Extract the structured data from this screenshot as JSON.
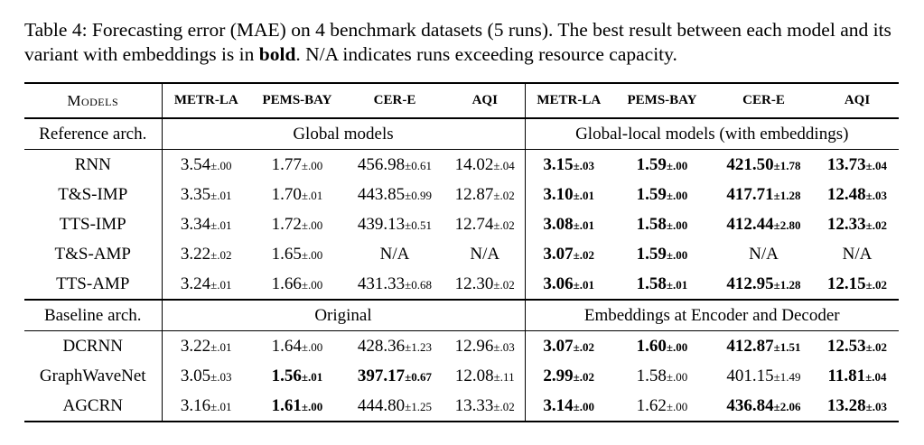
{
  "caption": {
    "part1": "Table 4: Forecasting error (MAE) on 4 benchmark datasets (5 runs). The best result between each model and its variant with embeddings is in ",
    "bold_word": "bold",
    "part2": ". N/A indicates runs exceeding resource capacity."
  },
  "header": {
    "models": "Models",
    "datasets": [
      "METR-LA",
      "PEMS-BAY",
      "CER-E",
      "AQI",
      "METR-LA",
      "PEMS-BAY",
      "CER-E",
      "AQI"
    ]
  },
  "sections": [
    {
      "label": "Reference arch.",
      "left_title": "Global models",
      "right_title": "Global-local models (with embeddings)",
      "rows": [
        {
          "model": "RNN",
          "cells": [
            {
              "v": "3.54",
              "s": "±.00",
              "b": false
            },
            {
              "v": "1.77",
              "s": "±.00",
              "b": false
            },
            {
              "v": "456.98",
              "s": "±0.61",
              "b": false
            },
            {
              "v": "14.02",
              "s": "±.04",
              "b": false
            },
            {
              "v": "3.15",
              "s": "±.03",
              "b": true
            },
            {
              "v": "1.59",
              "s": "±.00",
              "b": true
            },
            {
              "v": "421.50",
              "s": "±1.78",
              "b": true
            },
            {
              "v": "13.73",
              "s": "±.04",
              "b": true
            }
          ]
        },
        {
          "model": "T&S-IMP",
          "cells": [
            {
              "v": "3.35",
              "s": "±.01",
              "b": false
            },
            {
              "v": "1.70",
              "s": "±.01",
              "b": false
            },
            {
              "v": "443.85",
              "s": "±0.99",
              "b": false
            },
            {
              "v": "12.87",
              "s": "±.02",
              "b": false
            },
            {
              "v": "3.10",
              "s": "±.01",
              "b": true
            },
            {
              "v": "1.59",
              "s": "±.00",
              "b": true
            },
            {
              "v": "417.71",
              "s": "±1.28",
              "b": true
            },
            {
              "v": "12.48",
              "s": "±.03",
              "b": true
            }
          ]
        },
        {
          "model": "TTS-IMP",
          "cells": [
            {
              "v": "3.34",
              "s": "±.01",
              "b": false
            },
            {
              "v": "1.72",
              "s": "±.00",
              "b": false
            },
            {
              "v": "439.13",
              "s": "±0.51",
              "b": false
            },
            {
              "v": "12.74",
              "s": "±.02",
              "b": false
            },
            {
              "v": "3.08",
              "s": "±.01",
              "b": true
            },
            {
              "v": "1.58",
              "s": "±.00",
              "b": true
            },
            {
              "v": "412.44",
              "s": "±2.80",
              "b": true
            },
            {
              "v": "12.33",
              "s": "±.02",
              "b": true
            }
          ]
        },
        {
          "model": "T&S-AMP",
          "cells": [
            {
              "v": "3.22",
              "s": "±.02",
              "b": false
            },
            {
              "v": "1.65",
              "s": "±.00",
              "b": false
            },
            {
              "v": "N/A",
              "s": "",
              "b": false
            },
            {
              "v": "N/A",
              "s": "",
              "b": false
            },
            {
              "v": "3.07",
              "s": "±.02",
              "b": true
            },
            {
              "v": "1.59",
              "s": "±.00",
              "b": true
            },
            {
              "v": "N/A",
              "s": "",
              "b": false
            },
            {
              "v": "N/A",
              "s": "",
              "b": false
            }
          ]
        },
        {
          "model": "TTS-AMP",
          "cells": [
            {
              "v": "3.24",
              "s": "±.01",
              "b": false
            },
            {
              "v": "1.66",
              "s": "±.00",
              "b": false
            },
            {
              "v": "431.33",
              "s": "±0.68",
              "b": false
            },
            {
              "v": "12.30",
              "s": "±.02",
              "b": false
            },
            {
              "v": "3.06",
              "s": "±.01",
              "b": true
            },
            {
              "v": "1.58",
              "s": "±.01",
              "b": true
            },
            {
              "v": "412.95",
              "s": "±1.28",
              "b": true
            },
            {
              "v": "12.15",
              "s": "±.02",
              "b": true
            }
          ]
        }
      ]
    },
    {
      "label": "Baseline arch.",
      "left_title": "Original",
      "right_title": "Embeddings at Encoder and Decoder",
      "rows": [
        {
          "model": "DCRNN",
          "cells": [
            {
              "v": "3.22",
              "s": "±.01",
              "b": false
            },
            {
              "v": "1.64",
              "s": "±.00",
              "b": false
            },
            {
              "v": "428.36",
              "s": "±1.23",
              "b": false
            },
            {
              "v": "12.96",
              "s": "±.03",
              "b": false
            },
            {
              "v": "3.07",
              "s": "±.02",
              "b": true
            },
            {
              "v": "1.60",
              "s": "±.00",
              "b": true
            },
            {
              "v": "412.87",
              "s": "±1.51",
              "b": true
            },
            {
              "v": "12.53",
              "s": "±.02",
              "b": true
            }
          ]
        },
        {
          "model": "GraphWaveNet",
          "cells": [
            {
              "v": "3.05",
              "s": "±.03",
              "b": false
            },
            {
              "v": "1.56",
              "s": "±.01",
              "b": true
            },
            {
              "v": "397.17",
              "s": "±0.67",
              "b": true
            },
            {
              "v": "12.08",
              "s": "±.11",
              "b": false
            },
            {
              "v": "2.99",
              "s": "±.02",
              "b": true
            },
            {
              "v": "1.58",
              "s": "±.00",
              "b": false
            },
            {
              "v": "401.15",
              "s": "±1.49",
              "b": false
            },
            {
              "v": "11.81",
              "s": "±.04",
              "b": true
            }
          ]
        },
        {
          "model": "AGCRN",
          "cells": [
            {
              "v": "3.16",
              "s": "±.01",
              "b": false
            },
            {
              "v": "1.61",
              "s": "±.00",
              "b": true
            },
            {
              "v": "444.80",
              "s": "±1.25",
              "b": false
            },
            {
              "v": "13.33",
              "s": "±.02",
              "b": false
            },
            {
              "v": "3.14",
              "s": "±.00",
              "b": true
            },
            {
              "v": "1.62",
              "s": "±.00",
              "b": false
            },
            {
              "v": "436.84",
              "s": "±2.06",
              "b": true
            },
            {
              "v": "13.28",
              "s": "±.03",
              "b": true
            }
          ]
        }
      ]
    }
  ]
}
